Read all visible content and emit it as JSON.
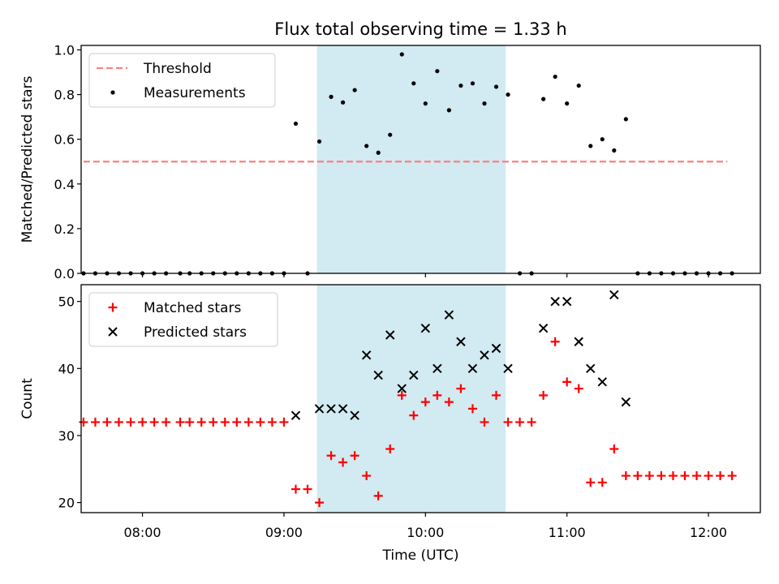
{
  "title": "Flux total observing time = 1.33 h",
  "xlabel": "Time (UTC)",
  "colors": {
    "threshold": "#ff7f7f",
    "measurement": "#000000",
    "matched": "#ff0000",
    "predicted": "#000000",
    "span": "#add8e6"
  },
  "chart_data": [
    {
      "type": "scatter",
      "ylabel": "Matched/Predicted stars",
      "xlim": [
        "07:34",
        "12:22"
      ],
      "ylim": [
        0,
        1.02
      ],
      "yticks": [
        "0.0",
        "0.2",
        "0.4",
        "0.6",
        "0.8",
        "1.0"
      ],
      "yticks_values": [
        0,
        0.2,
        0.4,
        0.6,
        0.8,
        1.0
      ],
      "xticks": [
        "08:00",
        "09:00",
        "10:00",
        "11:00",
        "12:00"
      ],
      "shaded_span": [
        "09:14",
        "10:34"
      ],
      "legend": {
        "location": "upper left",
        "entries": [
          "Threshold",
          "Measurements"
        ]
      },
      "series": [
        {
          "name": "Threshold",
          "style": "dashed line",
          "x": [
            "07:35",
            "12:08"
          ],
          "y": [
            0.5,
            0.5
          ]
        },
        {
          "name": "Measurements",
          "style": "dot",
          "x": [
            "07:35",
            "07:40",
            "07:45",
            "07:50",
            "07:55",
            "08:00",
            "08:05",
            "08:10",
            "08:16",
            "08:20",
            "08:25",
            "08:30",
            "08:35",
            "08:40",
            "08:45",
            "08:50",
            "08:55",
            "09:00",
            "09:05",
            "09:10",
            "09:15",
            "09:20",
            "09:25",
            "09:30",
            "09:35",
            "09:40",
            "09:45",
            "09:50",
            "09:55",
            "10:00",
            "10:05",
            "10:10",
            "10:15",
            "10:20",
            "10:25",
            "10:30",
            "10:35",
            "10:40",
            "10:45",
            "10:50",
            "10:55",
            "11:00",
            "11:05",
            "11:10",
            "11:15",
            "11:20",
            "11:25",
            "11:30",
            "11:35",
            "11:40",
            "11:45",
            "11:50",
            "11:55",
            "12:00",
            "12:05",
            "12:10"
          ],
          "y": [
            0,
            0,
            0,
            0,
            0,
            0,
            0,
            0,
            0,
            0,
            0,
            0,
            0,
            0,
            0,
            0,
            0,
            0,
            0.67,
            0,
            0.59,
            0.79,
            0.765,
            0.82,
            0.57,
            0.54,
            0.62,
            0.98,
            0.85,
            0.76,
            0.905,
            0.73,
            0.84,
            0.85,
            0.76,
            0.835,
            0.8,
            0,
            0,
            0.78,
            0.88,
            0.76,
            0.84,
            0.57,
            0.6,
            0.55,
            0.69,
            0,
            0,
            0,
            0,
            0,
            0,
            0,
            0,
            0
          ]
        }
      ]
    },
    {
      "type": "scatter",
      "ylabel": "Count",
      "xlim": [
        "07:34",
        "12:22"
      ],
      "ylim": [
        18.5,
        52.5
      ],
      "yticks": [
        "20",
        "30",
        "40",
        "50"
      ],
      "yticks_values": [
        20,
        30,
        40,
        50
      ],
      "xticks": [
        "08:00",
        "09:00",
        "10:00",
        "11:00",
        "12:00"
      ],
      "shaded_span": [
        "09:14",
        "10:34"
      ],
      "legend": {
        "location": "upper left",
        "entries": [
          "Matched stars",
          "Predicted stars"
        ]
      },
      "series": [
        {
          "name": "Matched stars",
          "style": "plus",
          "x": [
            "07:35",
            "07:40",
            "07:45",
            "07:50",
            "07:55",
            "08:00",
            "08:05",
            "08:10",
            "08:16",
            "08:20",
            "08:25",
            "08:30",
            "08:35",
            "08:40",
            "08:45",
            "08:50",
            "08:55",
            "09:00",
            "09:05",
            "09:10",
            "09:15",
            "09:20",
            "09:25",
            "09:30",
            "09:35",
            "09:40",
            "09:45",
            "09:50",
            "09:55",
            "10:00",
            "10:05",
            "10:10",
            "10:15",
            "10:20",
            "10:25",
            "10:30",
            "10:35",
            "10:40",
            "10:45",
            "10:50",
            "10:55",
            "11:00",
            "11:05",
            "11:10",
            "11:15",
            "11:20",
            "11:25",
            "11:30",
            "11:35",
            "11:40",
            "11:45",
            "11:50",
            "11:55",
            "12:00",
            "12:05",
            "12:10"
          ],
          "y": [
            32,
            32,
            32,
            32,
            32,
            32,
            32,
            32,
            32,
            32,
            32,
            32,
            32,
            32,
            32,
            32,
            32,
            32,
            22,
            22,
            20,
            27,
            26,
            27,
            24,
            21,
            28,
            36,
            33,
            35,
            36,
            35,
            37,
            34,
            32,
            36,
            32,
            32,
            32,
            36,
            44,
            38,
            37,
            23,
            23,
            28,
            24,
            24,
            24,
            24,
            24,
            24,
            24,
            24,
            24,
            24
          ]
        },
        {
          "name": "Predicted stars",
          "style": "x",
          "x": [
            "09:05",
            "09:15",
            "09:20",
            "09:25",
            "09:30",
            "09:35",
            "09:40",
            "09:45",
            "09:50",
            "09:55",
            "10:00",
            "10:05",
            "10:10",
            "10:15",
            "10:20",
            "10:25",
            "10:30",
            "10:35",
            "10:50",
            "10:55",
            "11:00",
            "11:05",
            "11:10",
            "11:15",
            "11:20",
            "11:25"
          ],
          "y": [
            33,
            34,
            34,
            34,
            33,
            42,
            39,
            45,
            37,
            39,
            46,
            40,
            48,
            44,
            40,
            42,
            43,
            40,
            46,
            50,
            50,
            44,
            40,
            38,
            51,
            35
          ]
        }
      ]
    }
  ]
}
